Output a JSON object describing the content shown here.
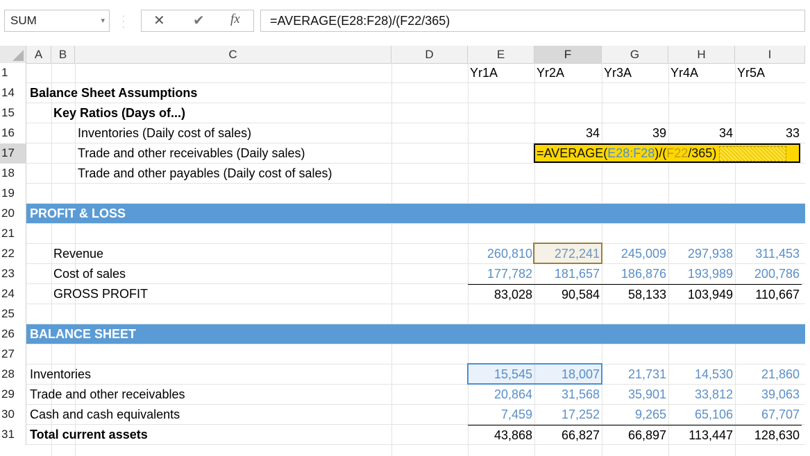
{
  "formula_bar": {
    "name_box": "SUM",
    "cancel_glyph": "✕",
    "enter_glyph": "✔",
    "fx_label": "fx",
    "formula": "=AVERAGE(E28:F28)/(F22/365)"
  },
  "columns": [
    "A",
    "B",
    "C",
    "D",
    "E",
    "F",
    "G",
    "H",
    "I"
  ],
  "header_row": {
    "row": "1",
    "E": "Yr1A",
    "F": "Yr2A",
    "G": "Yr3A",
    "H": "Yr4A",
    "I": "Yr5A"
  },
  "rows": {
    "r14": {
      "n": "14",
      "label": "Balance Sheet Assumptions"
    },
    "r15": {
      "n": "15",
      "label": "Key Ratios (Days of...)"
    },
    "r16": {
      "n": "16",
      "label": "Inventories (Daily cost of sales)",
      "F": "34",
      "G": "39",
      "H": "34",
      "I": "33"
    },
    "r17": {
      "n": "17",
      "label": "Trade and other receivables (Daily sales)",
      "edit_prefix": "=AVERAGE(",
      "edit_ref1": "E28:F28",
      "edit_mid": ")/(",
      "edit_ref2": "F22",
      "edit_suffix": "/365)"
    },
    "r18": {
      "n": "18",
      "label": "Trade and other payables (Daily cost of sales)"
    },
    "r19": {
      "n": "19"
    },
    "r20": {
      "n": "20",
      "label": "PROFIT & LOSS"
    },
    "r21": {
      "n": "21"
    },
    "r22": {
      "n": "22",
      "label": "Revenue",
      "E": "260,810",
      "F": "272,241",
      "G": "245,009",
      "H": "297,938",
      "I": "311,453"
    },
    "r23": {
      "n": "23",
      "label": "Cost of sales",
      "E": "177,782",
      "F": "181,657",
      "G": "186,876",
      "H": "193,989",
      "I": "200,786"
    },
    "r24": {
      "n": "24",
      "label": "GROSS PROFIT",
      "E": "83,028",
      "F": "90,584",
      "G": "58,133",
      "H": "103,949",
      "I": "110,667"
    },
    "r25": {
      "n": "25"
    },
    "r26": {
      "n": "26",
      "label": "BALANCE SHEET"
    },
    "r27": {
      "n": "27"
    },
    "r28": {
      "n": "28",
      "label": "Inventories",
      "E": "15,545",
      "F": "18,007",
      "G": "21,731",
      "H": "14,530",
      "I": "21,860"
    },
    "r29": {
      "n": "29",
      "label": "Trade and other receivables",
      "E": "20,864",
      "F": "31,568",
      "G": "35,901",
      "H": "33,812",
      "I": "39,063"
    },
    "r30": {
      "n": "30",
      "label": "Cash and cash equivalents",
      "E": "7,459",
      "F": "17,252",
      "G": "9,265",
      "H": "65,106",
      "I": "67,707"
    },
    "r31": {
      "n": "31",
      "label": "Total current assets",
      "E": "43,868",
      "F": "66,827",
      "G": "66,897",
      "H": "113,447",
      "I": "128,630"
    }
  },
  "colors": {
    "section_band": "#5b9bd5",
    "input_blue": "#5b8fc7",
    "edit_cell_fill": "#ffd700",
    "ref1_color": "#4a8fd4",
    "ref2_color": "#c09a1a"
  },
  "icons": [
    "cancel-icon",
    "enter-icon",
    "function-icon",
    "dropdown-icon"
  ]
}
